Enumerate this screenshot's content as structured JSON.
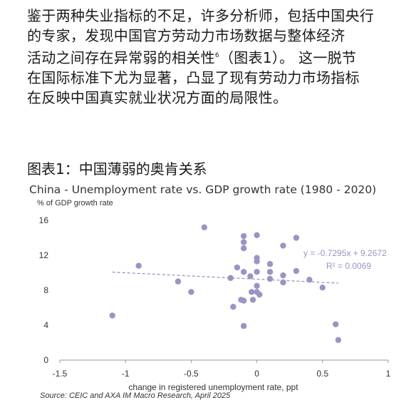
{
  "article": {
    "lines": [
      {
        "text": "鉴于两种失业指标的不足，许多分析师，包括中国央行"
      },
      {
        "text": "的专家，发现中国官方劳动力市场数据与整体经济"
      },
      {
        "text": "活动之间存在异常弱的相关性",
        "sup": "6",
        "after": "（图表1）。 这一脱节"
      },
      {
        "text": "在国际标准下尤为显著，凸显了现有劳动力市场指标"
      },
      {
        "text": "在反映中国真实就业状况方面的局限性。"
      }
    ]
  },
  "exhibit": {
    "label": "图表1：中国薄弱的奥肯关系"
  },
  "source": "Source: CEIC and AXA IM Macro Research, April 2025",
  "colors": {
    "points": "#9a94c6",
    "trendline": "#9a94c6",
    "axis": "#999999"
  },
  "chart_data": {
    "type": "scatter",
    "title": "China - Unemployment rate vs. GDP growth rate (1980 - 2020)",
    "ylabel": "% of GDP growth rate",
    "xlabel": "change in registered unemployment rate, ppt",
    "xlim": [
      -1.5,
      1
    ],
    "ylim": [
      0,
      16
    ],
    "xticks": [
      -1.5,
      -1,
      -0.5,
      0,
      0.5,
      1
    ],
    "xtick_labels": [
      "-1.5",
      "-1",
      "-0.5",
      "0",
      "0.5",
      "1"
    ],
    "yticks": [
      0,
      4,
      8,
      12,
      16
    ],
    "ytick_labels": [
      "0",
      "4",
      "8",
      "12",
      "16"
    ],
    "grid": false,
    "points": [
      {
        "x": -1.1,
        "y": 5.1
      },
      {
        "x": -0.9,
        "y": 10.8
      },
      {
        "x": -0.6,
        "y": 9.0
      },
      {
        "x": -0.5,
        "y": 7.8
      },
      {
        "x": -0.4,
        "y": 15.2
      },
      {
        "x": -0.2,
        "y": 9.4
      },
      {
        "x": -0.18,
        "y": 6.1
      },
      {
        "x": -0.15,
        "y": 10.6
      },
      {
        "x": -0.1,
        "y": 14.2
      },
      {
        "x": -0.1,
        "y": 13.5
      },
      {
        "x": -0.1,
        "y": 12.8
      },
      {
        "x": -0.1,
        "y": 10.1
      },
      {
        "x": -0.12,
        "y": 6.9
      },
      {
        "x": -0.1,
        "y": 6.8
      },
      {
        "x": -0.1,
        "y": 3.9
      },
      {
        "x": -0.05,
        "y": 9.6
      },
      {
        "x": -0.04,
        "y": 7.8
      },
      {
        "x": -0.03,
        "y": 6.9
      },
      {
        "x": 0.0,
        "y": 14.3
      },
      {
        "x": 0.0,
        "y": 11.7
      },
      {
        "x": 0.0,
        "y": 11.3
      },
      {
        "x": 0.0,
        "y": 10.1
      },
      {
        "x": 0.0,
        "y": 8.5
      },
      {
        "x": 0.0,
        "y": 7.8
      },
      {
        "x": 0.02,
        "y": 7.5
      },
      {
        "x": 0.1,
        "y": 11.0
      },
      {
        "x": 0.1,
        "y": 10.1
      },
      {
        "x": 0.1,
        "y": 9.3
      },
      {
        "x": 0.2,
        "y": 13.1
      },
      {
        "x": 0.2,
        "y": 9.7
      },
      {
        "x": 0.2,
        "y": 8.9
      },
      {
        "x": 0.3,
        "y": 14.0
      },
      {
        "x": 0.3,
        "y": 10.2
      },
      {
        "x": 0.4,
        "y": 9.2
      },
      {
        "x": 0.5,
        "y": 8.3
      },
      {
        "x": 0.6,
        "y": 4.1
      },
      {
        "x": 0.62,
        "y": 2.3
      }
    ],
    "trendline": {
      "slope": -0.7295,
      "intercept": 9.2672,
      "x_range": [
        -1.1,
        0.62
      ],
      "equation": "y = -0.7295x + 9.2672",
      "r2_label": "R² = 0.0069"
    }
  }
}
